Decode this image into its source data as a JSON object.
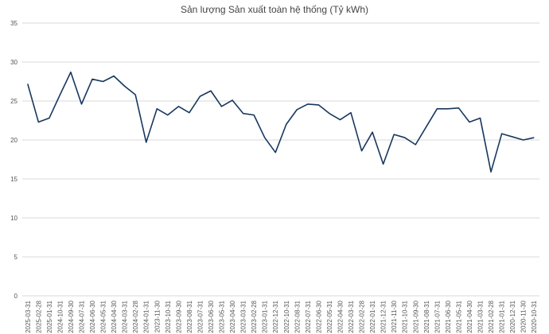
{
  "chart_data": {
    "type": "line",
    "title": "Sản lượng Sản xuất toàn hệ thống (Tỷ kWh)",
    "categories": [
      "2025-03-31",
      "2025-02-28",
      "2025-01-31",
      "2024-10-31",
      "2024-09-30",
      "2024-07-31",
      "2024-06-30",
      "2024-05-31",
      "2024-04-30",
      "2024-03-31",
      "2024-02-28",
      "2024-01-31",
      "2023-11-30",
      "2023-10-31",
      "2023-09-30",
      "2023-08-31",
      "2023-07-31",
      "2023-06-30",
      "2023-05-31",
      "2023-04-30",
      "2023-03-31",
      "2023-02-28",
      "2023-01-31",
      "2022-12-31",
      "2022-10-31",
      "2022-08-31",
      "2022-07-31",
      "2022-06-30",
      "2022-05-31",
      "2022-04-30",
      "2022-03-31",
      "2022-02-28",
      "2022-01-31",
      "2021-12-31",
      "2021-11-30",
      "2021-10-31",
      "2021-09-30",
      "2021-08-31",
      "2021-07-31",
      "2021-06-30",
      "2021-05-31",
      "2021-04-30",
      "2021-03-31",
      "2021-02-28",
      "2021-01-31",
      "2020-12-31",
      "2020-11-30",
      "2020-10-31"
    ],
    "values": [
      27.2,
      22.3,
      22.8,
      25.8,
      28.7,
      24.6,
      27.8,
      27.5,
      28.2,
      26.9,
      25.8,
      19.7,
      24.0,
      23.2,
      24.3,
      23.5,
      25.6,
      26.3,
      24.3,
      25.1,
      23.4,
      23.2,
      20.3,
      18.4,
      22.0,
      23.9,
      24.6,
      24.5,
      23.4,
      22.6,
      23.5,
      18.6,
      21.0,
      16.9,
      20.7,
      20.3,
      19.4,
      21.7,
      24.0,
      24.0,
      24.1,
      22.3,
      22.8,
      15.9,
      20.8,
      20.4,
      20.0,
      20.3
    ],
    "color": "#17375e",
    "ylim": [
      0,
      35
    ],
    "yticks": [
      0,
      5,
      10,
      15,
      20,
      25,
      30,
      35
    ],
    "grid": true
  }
}
